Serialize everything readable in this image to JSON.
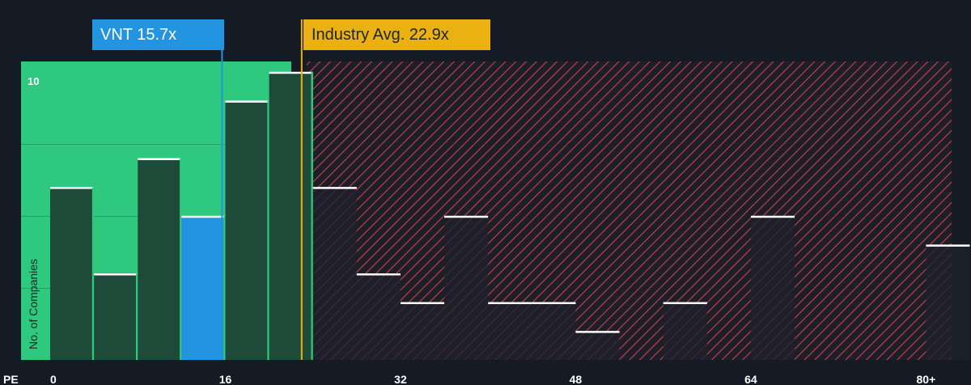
{
  "chart_data": {
    "type": "bar",
    "title": "",
    "xlabel": "PE",
    "ylabel": "No. of Companies",
    "xlim": [
      0,
      82
    ],
    "ylim": [
      0,
      10
    ],
    "y_max_label": "10",
    "x_ticks": [
      {
        "value": 0,
        "label": "0"
      },
      {
        "value": 16,
        "label": "16"
      },
      {
        "value": 32,
        "label": "32"
      },
      {
        "value": 48,
        "label": "48"
      },
      {
        "value": 64,
        "label": "64"
      },
      {
        "value": 80,
        "label": "80+"
      }
    ],
    "bar_width": 4,
    "bins": [
      {
        "x0": 0,
        "value": 6
      },
      {
        "x0": 4,
        "value": 3
      },
      {
        "x0": 8,
        "value": 7
      },
      {
        "x0": 12,
        "value": 5,
        "highlight": true
      },
      {
        "x0": 16,
        "value": 9
      },
      {
        "x0": 20,
        "value": 10
      },
      {
        "x0": 24,
        "value": 6
      },
      {
        "x0": 28,
        "value": 3
      },
      {
        "x0": 32,
        "value": 2
      },
      {
        "x0": 36,
        "value": 5
      },
      {
        "x0": 40,
        "value": 2
      },
      {
        "x0": 44,
        "value": 2
      },
      {
        "x0": 48,
        "value": 1
      },
      {
        "x0": 52,
        "value": 0
      },
      {
        "x0": 56,
        "value": 2
      },
      {
        "x0": 60,
        "value": 0
      },
      {
        "x0": 64,
        "value": 5
      },
      {
        "x0": 68,
        "value": 0
      },
      {
        "x0": 72,
        "value": 0
      },
      {
        "x0": 76,
        "value": 0
      },
      {
        "x0": 80,
        "value": 4
      }
    ],
    "company": {
      "ticker": "VNT",
      "pe": 15.7,
      "label": "VNT 15.7x"
    },
    "industry": {
      "avg_pe": 22.9,
      "label": "Industry Avg. 22.9x"
    },
    "colors": {
      "background": "#151b24",
      "green_zone": "#2ec97e",
      "bar": "#1e4a3a",
      "bar_highlight": "#2394df",
      "bar_divider": "#2ec97e",
      "red_hatch": "#d94452",
      "company": "#2394df",
      "industry": "#eab111"
    }
  }
}
